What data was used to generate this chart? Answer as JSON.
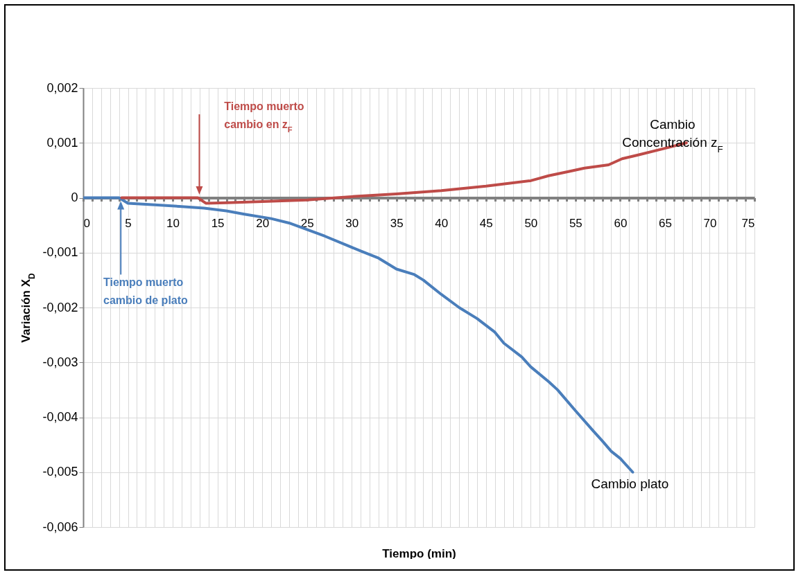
{
  "chart_data": {
    "type": "line",
    "xlabel": "Tiempo (min)",
    "ylabel": "Variación X$_{D}$",
    "xlim": [
      0,
      75
    ],
    "ylim": [
      -0.006,
      0.002
    ],
    "xticks": [
      0,
      {
        "value": 1,
        "label": null
      },
      {
        "value": 2,
        "label": null
      },
      {
        "value": 3,
        "label": null
      },
      {
        "value": 4,
        "label": null
      },
      5,
      {
        "value": 6,
        "label": null
      },
      {
        "value": 7,
        "label": null
      },
      {
        "value": 8,
        "label": null
      },
      {
        "value": 9,
        "label": null
      },
      10,
      {
        "value": 11,
        "label": null
      },
      {
        "value": 12,
        "label": null
      },
      {
        "value": 13,
        "label": null
      },
      {
        "value": 14,
        "label": null
      },
      15,
      {
        "value": 16,
        "label": null
      },
      {
        "value": 17,
        "label": null
      },
      {
        "value": 18,
        "label": null
      },
      {
        "value": 19,
        "label": null
      },
      20,
      {
        "value": 21,
        "label": null
      },
      {
        "value": 22,
        "label": null
      },
      {
        "value": 23,
        "label": null
      },
      {
        "value": 24,
        "label": null
      },
      25,
      {
        "value": 26,
        "label": null
      },
      {
        "value": 27,
        "label": null
      },
      {
        "value": 28,
        "label": null
      },
      {
        "value": 29,
        "label": null
      },
      30,
      {
        "value": 31,
        "label": null
      },
      {
        "value": 32,
        "label": null
      },
      {
        "value": 33,
        "label": null
      },
      {
        "value": 34,
        "label": null
      },
      35,
      {
        "value": 36,
        "label": null
      },
      {
        "value": 37,
        "label": null
      },
      {
        "value": 38,
        "label": null
      },
      {
        "value": 39,
        "label": null
      },
      40,
      {
        "value": 41,
        "label": null
      },
      {
        "value": 42,
        "label": null
      },
      {
        "value": 43,
        "label": null
      },
      {
        "value": 44,
        "label": null
      },
      45,
      {
        "value": 46,
        "label": null
      },
      {
        "value": 47,
        "label": null
      },
      {
        "value": 48,
        "label": null
      },
      {
        "value": 49,
        "label": null
      },
      50,
      {
        "value": 51,
        "label": null
      },
      {
        "value": 52,
        "label": null
      },
      {
        "value": 53,
        "label": null
      },
      {
        "value": 54,
        "label": null
      },
      55,
      {
        "value": 56,
        "label": null
      },
      {
        "value": 57,
        "label": null
      },
      {
        "value": 58,
        "label": null
      },
      {
        "value": 59,
        "label": null
      },
      60,
      {
        "value": 61,
        "label": null
      },
      {
        "value": 62,
        "label": null
      },
      {
        "value": 63,
        "label": null
      },
      {
        "value": 64,
        "label": null
      },
      65,
      {
        "value": 66,
        "label": null
      },
      {
        "value": 67,
        "label": null
      },
      {
        "value": 68,
        "label": null
      },
      {
        "value": 69,
        "label": null
      },
      70,
      {
        "value": 71,
        "label": null
      },
      {
        "value": 72,
        "label": null
      },
      {
        "value": 73,
        "label": null
      },
      {
        "value": 74,
        "label": null
      },
      75
    ],
    "yticks": [
      {
        "value": -0.006,
        "label": "-0,006"
      },
      {
        "value": -0.005,
        "label": "-0,005"
      },
      {
        "value": -0.004,
        "label": "-0,004"
      },
      {
        "value": -0.003,
        "label": "-0,003"
      },
      {
        "value": -0.002,
        "label": "-0,002"
      },
      {
        "value": -0.001,
        "label": "-0,001"
      },
      0,
      {
        "value": 0.001,
        "label": "0,001"
      },
      {
        "value": 0.002,
        "label": "0,002"
      }
    ],
    "grid": true,
    "legend": false,
    "marker": "none",
    "line_style": "solid",
    "series": [
      {
        "name": "Cambio plato",
        "color": "#4a7ebb",
        "x": [
          0,
          4,
          5,
          8,
          11,
          13.5,
          16,
          18,
          21,
          23,
          25,
          27,
          29.5,
          31,
          33,
          35,
          37,
          38,
          40,
          42,
          44,
          46,
          47,
          49,
          50,
          52,
          53,
          55,
          57,
          58,
          59,
          60,
          61.4
        ],
        "values": [
          0,
          0,
          -0.0001,
          -0.00013,
          -0.00016,
          -0.00019,
          -0.00024,
          -0.0003,
          -0.00038,
          -0.00046,
          -0.00058,
          -0.0007,
          -0.00087,
          -0.00097,
          -0.0011,
          -0.0013,
          -0.0014,
          -0.0015,
          -0.00176,
          -0.002,
          -0.0022,
          -0.00245,
          -0.00265,
          -0.0029,
          -0.00308,
          -0.00335,
          -0.0035,
          -0.00388,
          -0.00425,
          -0.00443,
          -0.00462,
          -0.00475,
          -0.005
        ]
      },
      {
        "name": "Cambio\nConcentración z$_{F}$",
        "color": "#be4b48",
        "x": [
          4.3,
          12.8,
          13.7,
          16,
          20,
          25,
          28.3,
          30,
          35,
          40,
          45,
          50,
          52,
          54.3,
          56,
          58.7,
          60.2,
          62,
          65,
          67.4
        ],
        "values": [
          0,
          0,
          -0.0001,
          -9e-05,
          -7e-05,
          -4e-05,
          0,
          2e-05,
          7e-05,
          0.00013,
          0.00021,
          0.00031,
          0.0004,
          0.00048,
          0.00054,
          0.0006,
          0.00071,
          0.00078,
          0.0009,
          0.001
        ]
      }
    ],
    "annotations": [
      "Tiempo muerto\ncambio de plato",
      "Tiempo muerto\ncambio en z$_{F}$"
    ]
  }
}
